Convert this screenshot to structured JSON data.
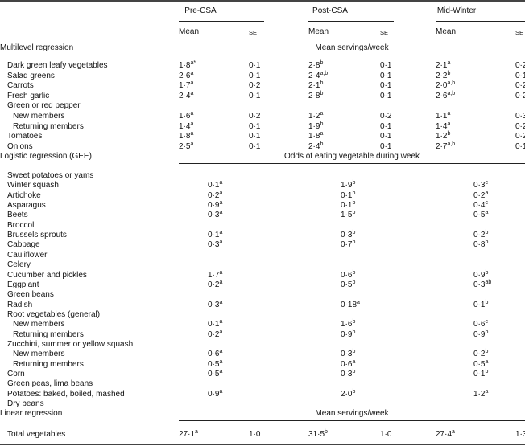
{
  "header": {
    "groups": [
      "Pre-CSA",
      "Post-CSA",
      "Mid-Winter"
    ],
    "mean_label": "Mean",
    "se_label": "SE"
  },
  "sections": [
    {
      "title": "Multilevel regression",
      "span_label": "Mean servings/week"
    },
    {
      "title": "Logistic regression (GEE)",
      "span_label": "Odds of eating vegetable during week"
    },
    {
      "title": "Linear regression",
      "span_label": "Mean servings/week"
    }
  ],
  "multilevel_rows": [
    {
      "label": "Dark green leafy vegetables",
      "indent": 1,
      "vals": [
        [
          "1·8",
          "a*",
          "0·1"
        ],
        [
          "2·8",
          "b",
          "0·1"
        ],
        [
          "2·1",
          "a",
          "0·2"
        ]
      ]
    },
    {
      "label": "Salad greens",
      "indent": 1,
      "vals": [
        [
          "2·6",
          "a",
          "0·1"
        ],
        [
          "2·4",
          "a,b",
          "0·1"
        ],
        [
          "2·2",
          "b",
          "0·1"
        ]
      ]
    },
    {
      "label": "Carrots",
      "indent": 1,
      "vals": [
        [
          "1·7",
          "a",
          "0·2"
        ],
        [
          "2·1",
          "b",
          "0·1"
        ],
        [
          "2·0",
          "a,b",
          "0·2"
        ]
      ]
    },
    {
      "label": "Fresh garlic",
      "indent": 1,
      "vals": [
        [
          "2·4",
          "a",
          "0·1"
        ],
        [
          "2·8",
          "b",
          "0·1"
        ],
        [
          "2·6",
          "a,b",
          "0·2"
        ]
      ]
    },
    {
      "label": "Green or red pepper",
      "indent": 1,
      "vals": []
    },
    {
      "label": "New members",
      "indent": 2,
      "vals": [
        [
          "1·6",
          "a",
          "0·2"
        ],
        [
          "1·2",
          "a",
          "0·2"
        ],
        [
          "1·1",
          "a",
          "0·3"
        ]
      ]
    },
    {
      "label": "Returning members",
      "indent": 2,
      "vals": [
        [
          "1·4",
          "a",
          "0·1"
        ],
        [
          "1·9",
          "b",
          "0·1"
        ],
        [
          "1·4",
          "a",
          "0·2"
        ]
      ]
    },
    {
      "label": "Tomatoes",
      "indent": 1,
      "vals": [
        [
          "1·8",
          "a",
          "0·1"
        ],
        [
          "1·8",
          "a",
          "0·1"
        ],
        [
          "1·2",
          "b",
          "0·2"
        ]
      ]
    },
    {
      "label": "Onions",
      "indent": 1,
      "vals": [
        [
          "2·5",
          "a",
          "0·1"
        ],
        [
          "2·4",
          "b",
          "0·1"
        ],
        [
          "2·7",
          "a,b",
          "0·1"
        ]
      ]
    }
  ],
  "logistic_rows": [
    {
      "label": "Sweet potatoes or yams",
      "indent": 1,
      "vals": []
    },
    {
      "label": "Winter squash",
      "indent": 1,
      "vals": [
        [
          "0·1",
          "a"
        ],
        [
          "1·9",
          "b"
        ],
        [
          "0·3",
          "c"
        ]
      ]
    },
    {
      "label": "Artichoke",
      "indent": 1,
      "vals": [
        [
          "0·2",
          "a"
        ],
        [
          "0·1",
          "b"
        ],
        [
          "0·2",
          "a"
        ]
      ]
    },
    {
      "label": "Asparagus",
      "indent": 1,
      "vals": [
        [
          "0·9",
          "a"
        ],
        [
          "0·1",
          "b"
        ],
        [
          "0·4",
          "c"
        ]
      ]
    },
    {
      "label": "Beets",
      "indent": 1,
      "vals": [
        [
          "0·3",
          "a"
        ],
        [
          "1·5",
          "b"
        ],
        [
          "0·5",
          "a"
        ]
      ]
    },
    {
      "label": "Broccoli",
      "indent": 1,
      "vals": []
    },
    {
      "label": "Brussels sprouts",
      "indent": 1,
      "vals": [
        [
          "0·1",
          "a"
        ],
        [
          "0·3",
          "b"
        ],
        [
          "0·2",
          "b"
        ]
      ]
    },
    {
      "label": "Cabbage",
      "indent": 1,
      "vals": [
        [
          "0·3",
          "a"
        ],
        [
          "0·7",
          "b"
        ],
        [
          "0·8",
          "b"
        ]
      ]
    },
    {
      "label": "Cauliflower",
      "indent": 1,
      "vals": []
    },
    {
      "label": "Celery",
      "indent": 1,
      "vals": []
    },
    {
      "label": "Cucumber and pickles",
      "indent": 1,
      "vals": [
        [
          "1·7",
          "a"
        ],
        [
          "0·6",
          "b"
        ],
        [
          "0·9",
          "b"
        ]
      ]
    },
    {
      "label": "Eggplant",
      "indent": 1,
      "vals": [
        [
          "0·2",
          "a"
        ],
        [
          "0·5",
          "b"
        ],
        [
          "0·3",
          "ab"
        ]
      ]
    },
    {
      "label": "Green beans",
      "indent": 1,
      "vals": []
    },
    {
      "label": "Radish",
      "indent": 1,
      "vals": [
        [
          "0·3",
          "a"
        ],
        [
          "0·18",
          "a"
        ],
        [
          "0·1",
          "b"
        ]
      ]
    },
    {
      "label": "Root vegetables (general)",
      "indent": 1,
      "vals": []
    },
    {
      "label": "New members",
      "indent": 2,
      "vals": [
        [
          "0·1",
          "a"
        ],
        [
          "1·6",
          "b"
        ],
        [
          "0·6",
          "c"
        ]
      ]
    },
    {
      "label": "Returning members",
      "indent": 2,
      "vals": [
        [
          "0·2",
          "a"
        ],
        [
          "0·9",
          "b"
        ],
        [
          "0·9",
          "b"
        ]
      ]
    },
    {
      "label": "Zucchini, summer or yellow squash",
      "indent": 1,
      "vals": []
    },
    {
      "label": "New members",
      "indent": 2,
      "vals": [
        [
          "0·6",
          "a"
        ],
        [
          "0·3",
          "b"
        ],
        [
          "0·2",
          "b"
        ]
      ]
    },
    {
      "label": "Returning members",
      "indent": 2,
      "vals": [
        [
          "0·5",
          "a"
        ],
        [
          "0·6",
          "a"
        ],
        [
          "0·5",
          "a"
        ]
      ]
    },
    {
      "label": "Corn",
      "indent": 1,
      "vals": [
        [
          "0·5",
          "a"
        ],
        [
          "0·3",
          "b"
        ],
        [
          "0·1",
          "b"
        ]
      ]
    },
    {
      "label": "Green peas, lima beans",
      "indent": 1,
      "vals": []
    },
    {
      "label": "Potatoes: baked, boiled, mashed",
      "indent": 1,
      "vals": [
        [
          "0·9",
          "a"
        ],
        [
          "2·0",
          "b"
        ],
        [
          "1·2",
          "a"
        ]
      ]
    },
    {
      "label": "Dry beans",
      "indent": 1,
      "vals": []
    }
  ],
  "linear_rows": [
    {
      "label": "Total vegetables",
      "indent": 1,
      "vals": [
        [
          "27·1",
          "a",
          "1·0"
        ],
        [
          "31·5",
          "b",
          "1·0"
        ],
        [
          "27·4",
          "a",
          "1·3"
        ]
      ]
    }
  ]
}
